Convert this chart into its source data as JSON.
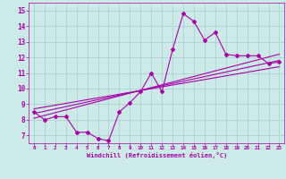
{
  "xlabel": "Windchill (Refroidissement éolien,°C)",
  "bg_color": "#cceae8",
  "line_color": "#aa00aa",
  "grid_color": "#aacccc",
  "xlim": [
    -0.5,
    23.5
  ],
  "ylim": [
    6.5,
    15.5
  ],
  "xticks": [
    0,
    1,
    2,
    3,
    4,
    5,
    6,
    7,
    8,
    9,
    10,
    11,
    12,
    13,
    14,
    15,
    16,
    17,
    18,
    19,
    20,
    21,
    22,
    23
  ],
  "yticks": [
    7,
    8,
    9,
    10,
    11,
    12,
    13,
    14,
    15
  ],
  "hours": [
    0,
    1,
    2,
    3,
    4,
    5,
    6,
    7,
    8,
    9,
    10,
    11,
    12,
    13,
    14,
    15,
    16,
    17,
    18,
    19,
    20,
    21,
    22,
    23
  ],
  "windchill": [
    8.5,
    8.0,
    8.2,
    8.2,
    7.2,
    7.2,
    6.8,
    6.65,
    8.5,
    9.1,
    9.8,
    11.0,
    9.8,
    12.5,
    14.8,
    14.3,
    13.1,
    13.6,
    12.2,
    12.1,
    12.1,
    12.1,
    11.6,
    11.7
  ],
  "trend1_x": [
    0,
    23
  ],
  "trend1_y": [
    8.4,
    11.8
  ],
  "trend2_x": [
    0,
    23
  ],
  "trend2_y": [
    8.1,
    12.2
  ],
  "trend3_x": [
    0,
    23
  ],
  "trend3_y": [
    8.7,
    11.4
  ]
}
